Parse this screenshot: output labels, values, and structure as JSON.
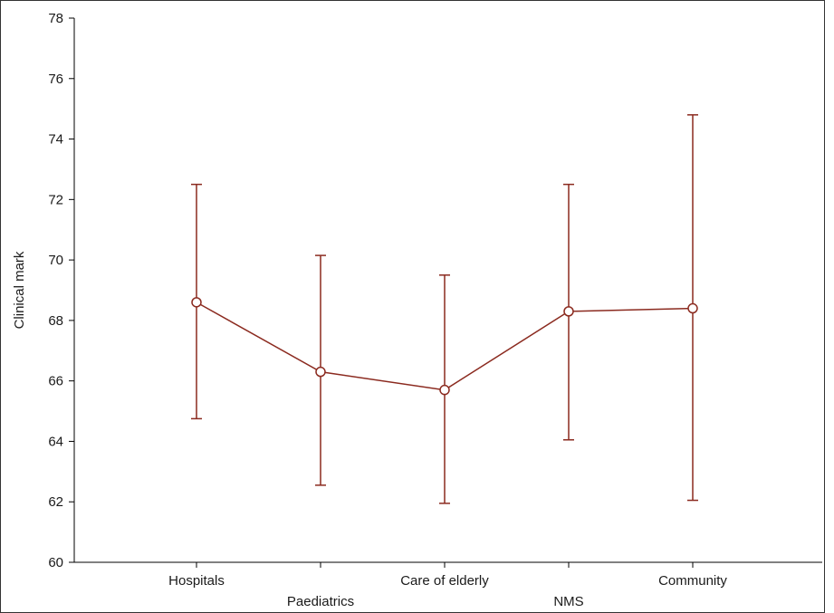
{
  "chart_data": {
    "type": "line",
    "title": "",
    "xlabel": "",
    "ylabel": "Clinical mark",
    "ylim": [
      60,
      78
    ],
    "yticks": [
      60,
      62,
      64,
      66,
      68,
      70,
      72,
      74,
      76,
      78
    ],
    "grid": false,
    "categories": [
      "Hospitals",
      "Paediatrics",
      "Care of elderly",
      "NMS",
      "Community"
    ],
    "series": [
      {
        "values": [
          68.6,
          66.3,
          65.7,
          68.3,
          68.4
        ],
        "error_low": [
          64.75,
          62.55,
          61.95,
          64.05,
          62.05
        ],
        "error_high": [
          72.5,
          70.15,
          69.5,
          72.5,
          74.8
        ],
        "color": "#8b2a1f",
        "marker": "open-circle"
      }
    ]
  }
}
